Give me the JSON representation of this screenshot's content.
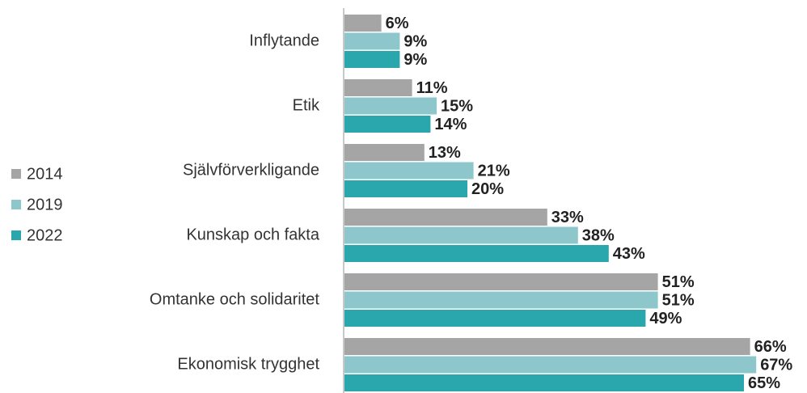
{
  "chart_data": {
    "type": "hbar",
    "categories": [
      "Inflytande",
      "Etik",
      "Självförverkligande",
      "Kunskap och fakta",
      "Omtanke och solidaritet",
      "Ekonomisk trygghet"
    ],
    "series": [
      {
        "name": "2014",
        "color": "#a5a5a5",
        "values": [
          6,
          11,
          13,
          33,
          51,
          66
        ],
        "value_labels": [
          "6%",
          "11%",
          "13%",
          "33%",
          "51%",
          "66%"
        ]
      },
      {
        "name": "2019",
        "color": "#8ec7cb",
        "values": [
          9,
          15,
          21,
          38,
          51,
          67
        ],
        "value_labels": [
          "9%",
          "15%",
          "21%",
          "38%",
          "51%",
          "67%"
        ]
      },
      {
        "name": "2022",
        "color": "#2aa7ad",
        "values": [
          9,
          14,
          20,
          43,
          49,
          65
        ],
        "value_labels": [
          "9%",
          "14%",
          "20%",
          "43%",
          "49%",
          "65%"
        ]
      }
    ],
    "xlim": [
      0,
      70
    ],
    "legend": "left"
  }
}
